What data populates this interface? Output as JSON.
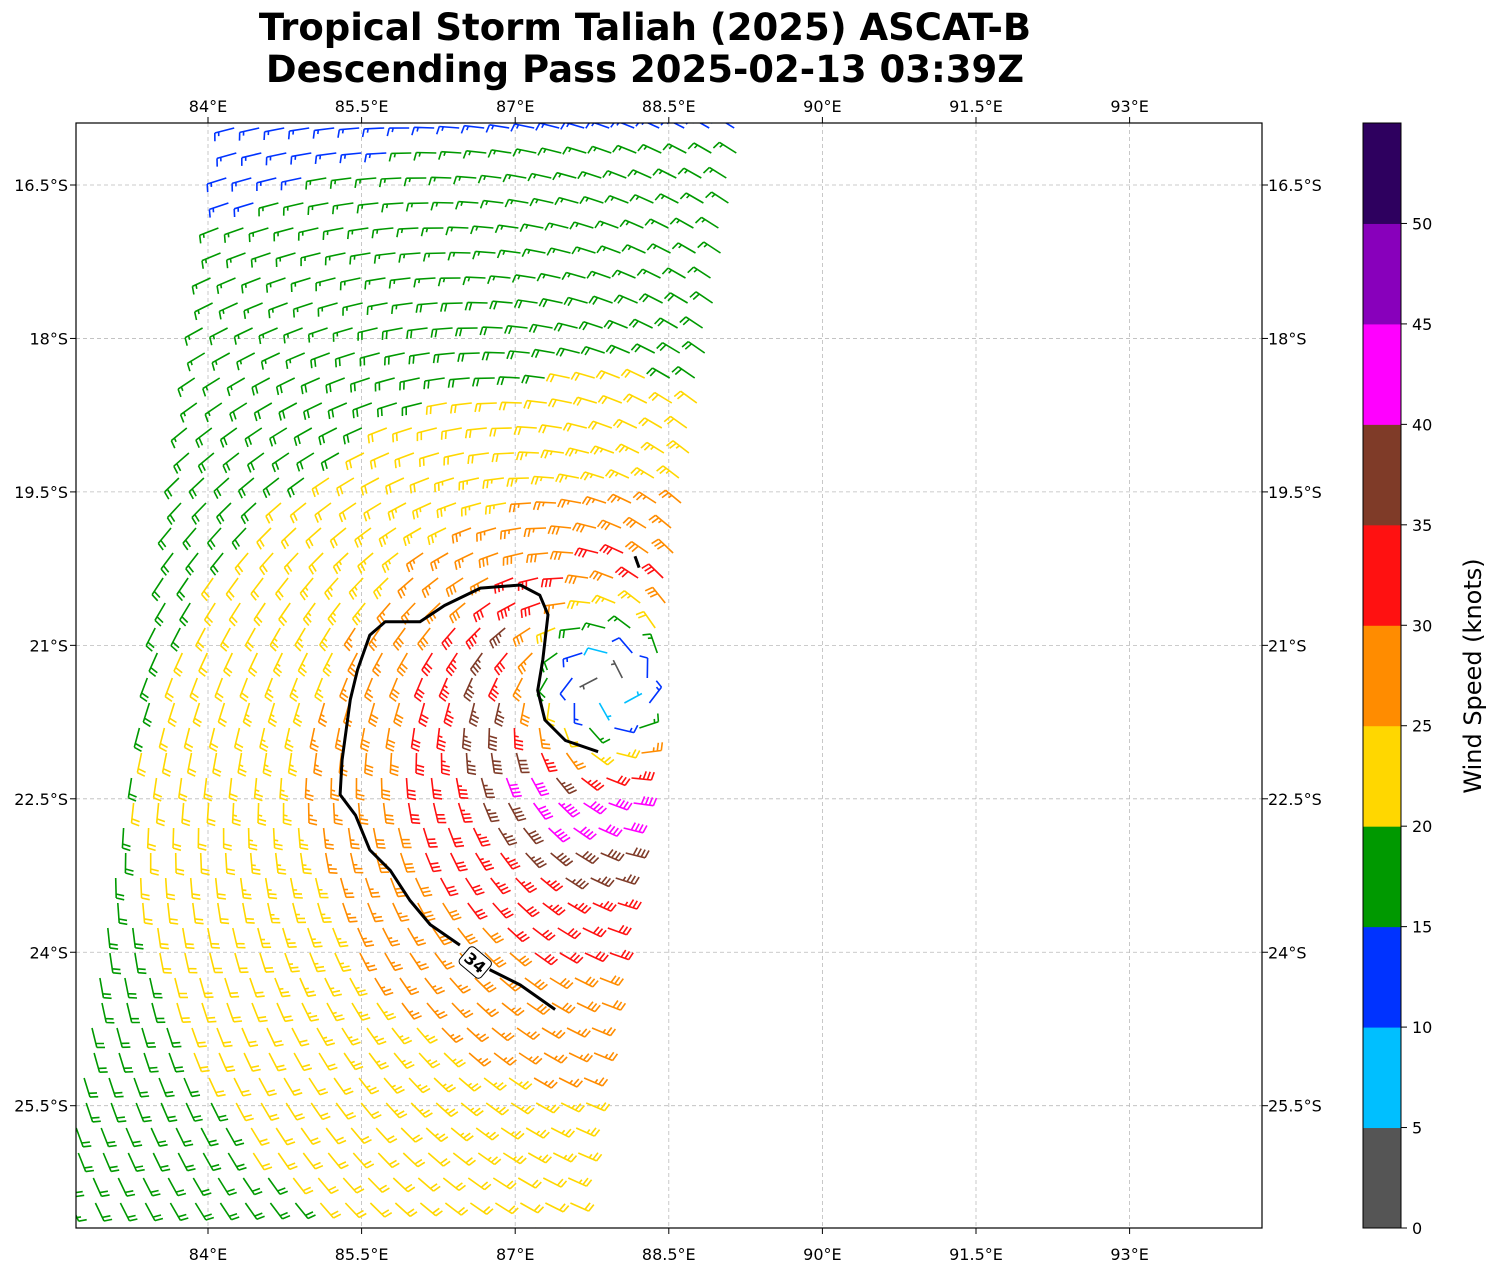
{
  "title": {
    "line1": "Tropical Storm Taliah (2025) ASCAT-B",
    "line2": "Descending Pass 2025-02-13 03:39Z"
  },
  "chart_data": {
    "type": "wind-barb-map",
    "lon_ticks": [
      {
        "v": 84,
        "label": "84°E"
      },
      {
        "v": 85.5,
        "label": "85.5°E"
      },
      {
        "v": 87,
        "label": "87°E"
      },
      {
        "v": 88.5,
        "label": "88.5°E"
      },
      {
        "v": 90,
        "label": "90°E"
      },
      {
        "v": 91.5,
        "label": "91.5°E"
      },
      {
        "v": 93,
        "label": "93°E"
      }
    ],
    "lat_ticks": [
      {
        "v": 16.5,
        "label": "16.5°S"
      },
      {
        "v": 18,
        "label": "18°S"
      },
      {
        "v": 19.5,
        "label": "19.5°S"
      },
      {
        "v": 21,
        "label": "21°S"
      },
      {
        "v": 22.5,
        "label": "22.5°S"
      },
      {
        "v": 24,
        "label": "24°S"
      },
      {
        "v": 25.5,
        "label": "25.5°S"
      }
    ],
    "lon_range": [
      82.72,
      94.3
    ],
    "lat_range_south": [
      15.89,
      26.69
    ],
    "grid": true,
    "wind_field": {
      "center_lon": 87.93,
      "center_lat": 21.44,
      "rmw_deg": 1.2,
      "peak_south_kt": 45,
      "peak_north_kt": 32
    },
    "contour": {
      "label": "34",
      "label_pos": [
        86.61,
        24.1
      ],
      "segments": [
        [
          [
            86.46,
            23.93
          ],
          [
            86.17,
            23.73
          ],
          [
            85.97,
            23.49
          ],
          [
            85.78,
            23.2
          ],
          [
            85.58,
            23.0
          ],
          [
            85.44,
            22.66
          ],
          [
            85.29,
            22.46
          ],
          [
            85.31,
            22.12
          ],
          [
            85.39,
            21.53
          ],
          [
            85.46,
            21.24
          ],
          [
            85.58,
            20.9
          ],
          [
            85.73,
            20.77
          ],
          [
            86.07,
            20.77
          ],
          [
            86.31,
            20.61
          ],
          [
            86.66,
            20.44
          ],
          [
            87.05,
            20.41
          ],
          [
            87.24,
            20.51
          ],
          [
            87.32,
            20.7
          ],
          [
            87.27,
            21.14
          ],
          [
            87.22,
            21.44
          ],
          [
            87.29,
            21.73
          ],
          [
            87.49,
            21.93
          ],
          [
            87.81,
            22.04
          ]
        ],
        [
          [
            86.75,
            24.17
          ],
          [
            87.05,
            24.32
          ],
          [
            87.39,
            24.56
          ]
        ],
        [
          [
            88.17,
            20.13
          ],
          [
            88.21,
            20.24
          ]
        ]
      ]
    },
    "colorbar": {
      "label": "Wind Speed (knots)",
      "bounds": [
        0,
        5,
        10,
        15,
        20,
        25,
        30,
        35,
        40,
        45,
        50,
        55
      ],
      "tick_labels": [
        "0",
        "5",
        "10",
        "15",
        "20",
        "25",
        "30",
        "35",
        "40",
        "45",
        "50"
      ],
      "colors": [
        "#555555",
        "#00bfff",
        "#0033ff",
        "#009900",
        "#ffd700",
        "#ff8c00",
        "#ff1111",
        "#7f3b28",
        "#ff00ff",
        "#8800bb",
        "#2e005f"
      ]
    }
  }
}
